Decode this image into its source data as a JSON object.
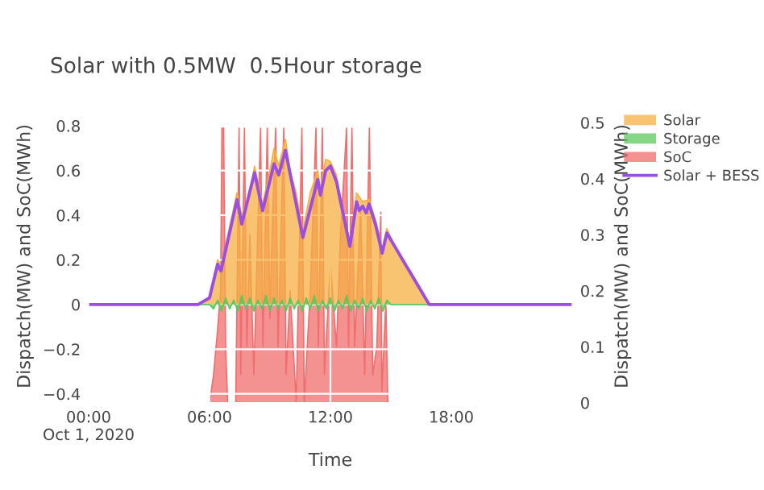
{
  "chart_data": {
    "type": "area",
    "title": "Solar with 0.5MW  0.5Hour storage",
    "xlabel": "Time",
    "ylabel": "Dispatch(MW) and SoC(MWh)",
    "y2label": "Dispatch(MW) and SoC(MWh)",
    "xlim": [
      "2020-10-01T00:00",
      "2020-10-02T00:00"
    ],
    "xticks": [
      {
        "value": "2020-10-01T00:00",
        "label": "00:00\nOct 1, 2020"
      },
      {
        "value": "2020-10-01T06:00",
        "label": "06:00"
      },
      {
        "value": "2020-10-01T12:00",
        "label": "12:00"
      },
      {
        "value": "2020-10-01T18:00",
        "label": "18:00"
      }
    ],
    "ylim": [
      -0.44,
      0.872
    ],
    "yticks": [
      {
        "value": -0.4,
        "label": "−0.4"
      },
      {
        "value": -0.2,
        "label": "−0.2"
      },
      0,
      0.2,
      0.4,
      0.6,
      0.8
    ],
    "y2lim": [
      0,
      0.523
    ],
    "y2ticks": [
      0,
      0.1,
      0.2,
      0.3,
      0.4,
      0.5
    ],
    "grid": true,
    "legend": "top right",
    "series": [
      {
        "name": "Solar",
        "color": "#f5b041",
        "x": [
          "2020-10-01T00:00",
          "2020-10-01T05:24",
          "2020-10-01T06:00",
          "2020-10-01T06:24",
          "2020-10-01T06:36",
          "2020-10-01T07:00",
          "2020-10-01T07:22",
          "2020-10-01T07:36",
          "2020-10-01T08:00",
          "2020-10-01T08:14",
          "2020-10-01T08:38",
          "2020-10-01T09:00",
          "2020-10-01T09:12",
          "2020-10-01T09:26",
          "2020-10-01T09:46",
          "2020-10-01T10:00",
          "2020-10-01T10:18",
          "2020-10-01T10:38",
          "2020-10-01T11:00",
          "2020-10-01T11:22",
          "2020-10-01T11:30",
          "2020-10-01T11:46",
          "2020-10-01T12:00",
          "2020-10-01T12:18",
          "2020-10-01T12:36",
          "2020-10-01T12:58",
          "2020-10-01T13:18",
          "2020-10-01T13:36",
          "2020-10-01T13:55",
          "2020-10-01T14:14",
          "2020-10-01T14:34",
          "2020-10-01T14:48",
          "2020-10-01T15:30",
          "2020-10-01T16:54",
          "2020-10-02T00:00"
        ],
        "values": [
          0,
          0,
          0.02,
          0.2,
          0.17,
          0.35,
          0.5,
          0.4,
          0.5,
          0.62,
          0.45,
          0.6,
          0.7,
          0.62,
          0.74,
          0.6,
          0.5,
          0.33,
          0.5,
          0.6,
          0.52,
          0.65,
          0.64,
          0.58,
          0.42,
          0.28,
          0.5,
          0.46,
          0.47,
          0.38,
          0.25,
          0.34,
          0.2,
          0,
          0
        ]
      },
      {
        "name": "Storage",
        "color": "#5cc85c",
        "x": [
          "2020-10-01T00:00",
          "2020-10-01T06:00",
          "2020-10-01T06:12",
          "2020-10-01T06:24",
          "2020-10-01T06:36",
          "2020-10-01T06:48",
          "2020-10-01T07:00",
          "2020-10-01T07:12",
          "2020-10-01T07:24",
          "2020-10-01T07:36",
          "2020-10-01T07:48",
          "2020-10-01T08:00",
          "2020-10-01T08:12",
          "2020-10-01T08:24",
          "2020-10-01T08:36",
          "2020-10-01T08:48",
          "2020-10-01T09:00",
          "2020-10-01T09:12",
          "2020-10-01T09:24",
          "2020-10-01T09:36",
          "2020-10-01T09:48",
          "2020-10-01T10:00",
          "2020-10-01T10:12",
          "2020-10-01T10:24",
          "2020-10-01T10:36",
          "2020-10-01T10:48",
          "2020-10-01T11:00",
          "2020-10-01T11:12",
          "2020-10-01T11:24",
          "2020-10-01T11:36",
          "2020-10-01T11:48",
          "2020-10-01T12:00",
          "2020-10-01T12:12",
          "2020-10-01T12:24",
          "2020-10-01T12:36",
          "2020-10-01T12:48",
          "2020-10-01T13:00",
          "2020-10-01T13:12",
          "2020-10-01T13:24",
          "2020-10-01T13:36",
          "2020-10-01T13:48",
          "2020-10-01T14:00",
          "2020-10-01T14:12",
          "2020-10-01T14:24",
          "2020-10-01T14:36",
          "2020-10-01T14:48",
          "2020-10-01T15:00",
          "2020-10-02T00:00"
        ],
        "values": [
          0,
          0,
          -0.02,
          0.02,
          -0.03,
          0.03,
          -0.02,
          0.02,
          -0.03,
          0.04,
          -0.02,
          0.03,
          -0.03,
          0.02,
          -0.02,
          0.04,
          -0.03,
          0.03,
          -0.02,
          0.02,
          -0.03,
          0.03,
          -0.02,
          0.02,
          -0.03,
          0.03,
          -0.02,
          0.04,
          -0.03,
          0.02,
          -0.02,
          0.03,
          -0.03,
          0.02,
          -0.02,
          0.04,
          -0.03,
          0.02,
          -0.02,
          0.03,
          -0.03,
          0.02,
          -0.02,
          0.03,
          -0.03,
          0.02,
          0,
          0
        ]
      },
      {
        "name": "SoC",
        "axis": "y2",
        "color": "#f06e6e",
        "x": [
          "2020-10-01T00:00",
          "2020-10-01T06:00",
          "2020-10-01T06:12",
          "2020-10-01T06:24",
          "2020-10-01T06:33",
          "2020-10-01T06:37",
          "2020-10-01T06:42",
          "2020-10-01T06:48",
          "2020-10-01T06:54",
          "2020-10-01T07:18",
          "2020-10-01T07:28",
          "2020-10-01T07:33",
          "2020-10-01T07:44",
          "2020-10-01T07:51",
          "2020-10-01T08:00",
          "2020-10-01T08:12",
          "2020-10-01T08:32",
          "2020-10-01T08:39",
          "2020-10-01T08:52",
          "2020-10-01T09:00",
          "2020-10-01T09:06",
          "2020-10-01T09:17",
          "2020-10-01T09:24",
          "2020-10-01T09:41",
          "2020-10-01T09:48",
          "2020-10-01T10:00",
          "2020-10-01T10:18",
          "2020-10-01T10:35",
          "2020-10-01T10:42",
          "2020-10-01T11:00",
          "2020-10-01T11:17",
          "2020-10-01T11:24",
          "2020-10-01T11:36",
          "2020-10-01T11:42",
          "2020-10-01T12:00",
          "2020-10-01T12:18",
          "2020-10-01T12:30",
          "2020-10-01T12:48",
          "2020-10-01T12:54",
          "2020-10-01T13:04",
          "2020-10-01T13:12",
          "2020-10-01T13:30",
          "2020-10-01T13:42",
          "2020-10-01T13:56",
          "2020-10-01T14:06",
          "2020-10-01T14:18",
          "2020-10-01T14:30",
          "2020-10-01T14:33",
          "2020-10-01T14:45",
          "2020-10-01T14:51",
          "2020-10-02T00:00"
        ],
        "values": [
          0,
          0,
          0.05,
          0.13,
          0.2,
          0.49,
          0.49,
          0.1,
          0,
          0,
          0.49,
          0.05,
          0.49,
          0.1,
          0.3,
          0.05,
          0.49,
          0.1,
          0.49,
          0.15,
          0.3,
          0.49,
          0.1,
          0.49,
          0.05,
          0.2,
          0,
          0.49,
          0,
          0.2,
          0.49,
          0.1,
          0.49,
          0.05,
          0.25,
          0.1,
          0.3,
          0.49,
          0.1,
          0.49,
          0.1,
          0.35,
          0.05,
          0.49,
          0.05,
          0.1,
          0.34,
          0.02,
          0.18,
          0,
          0
        ]
      },
      {
        "name": "Solar + BESS",
        "type": "line",
        "color": "#9b4fe0",
        "x": [
          "2020-10-01T00:00",
          "2020-10-01T05:26",
          "2020-10-01T06:00",
          "2020-10-01T06:24",
          "2020-10-01T06:34",
          "2020-10-01T07:22",
          "2020-10-01T07:36",
          "2020-10-01T08:14",
          "2020-10-01T08:38",
          "2020-10-01T09:12",
          "2020-10-01T09:26",
          "2020-10-01T09:46",
          "2020-10-01T10:38",
          "2020-10-01T11:22",
          "2020-10-01T11:30",
          "2020-10-01T11:46",
          "2020-10-01T12:00",
          "2020-10-01T12:18",
          "2020-10-01T12:58",
          "2020-10-01T13:18",
          "2020-10-01T13:26",
          "2020-10-01T13:36",
          "2020-10-01T13:46",
          "2020-10-01T13:55",
          "2020-10-01T14:14",
          "2020-10-01T14:34",
          "2020-10-01T14:48",
          "2020-10-01T16:54",
          "2020-10-02T00:00"
        ],
        "values": [
          0,
          0,
          0.03,
          0.18,
          0.15,
          0.47,
          0.36,
          0.59,
          0.42,
          0.63,
          0.58,
          0.69,
          0.3,
          0.56,
          0.49,
          0.6,
          0.62,
          0.55,
          0.26,
          0.46,
          0.42,
          0.44,
          0.41,
          0.45,
          0.36,
          0.23,
          0.32,
          0,
          0
        ]
      }
    ]
  }
}
